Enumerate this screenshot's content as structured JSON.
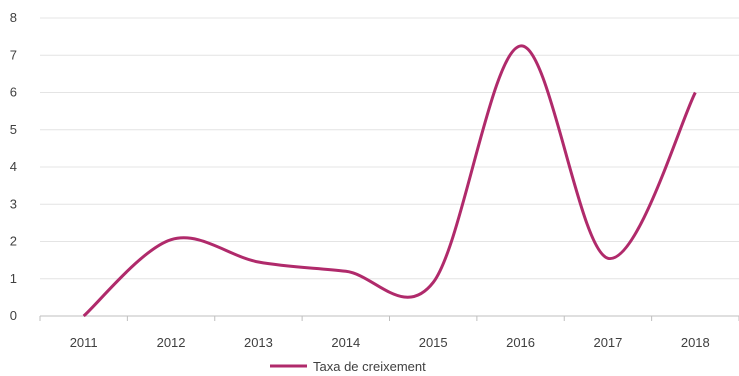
{
  "chart_data": {
    "type": "line",
    "title": "",
    "xlabel": "",
    "ylabel": "",
    "categories": [
      "2011",
      "2012",
      "2013",
      "2014",
      "2015",
      "2016",
      "2017",
      "2018"
    ],
    "series": [
      {
        "name": "Taxa de creixement",
        "values": [
          0,
          2.05,
          1.45,
          1.2,
          0.9,
          7.25,
          1.55,
          6.0
        ],
        "color": "#b02a6b"
      }
    ],
    "ylim": [
      0,
      8
    ],
    "yticks": [
      "0",
      "1",
      "2",
      "3",
      "4",
      "5",
      "6",
      "7",
      "8"
    ],
    "grid": "horizontal",
    "legend": "bottom"
  }
}
